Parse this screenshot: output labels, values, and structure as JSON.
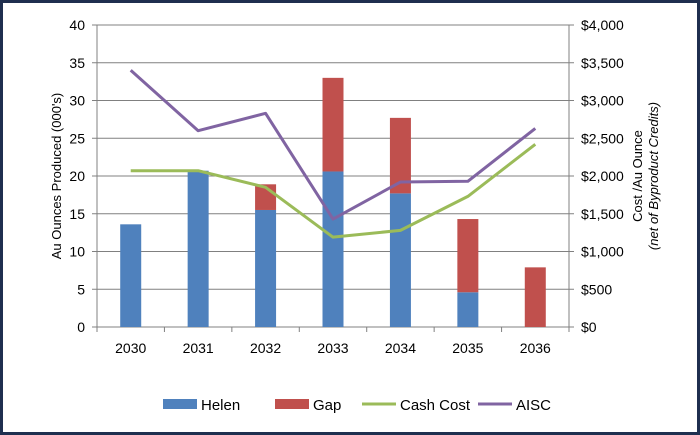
{
  "chart_data": {
    "type": "bar",
    "title": "",
    "categories": [
      "2030",
      "2031",
      "2032",
      "2033",
      "2034",
      "2035",
      "2036"
    ],
    "series": [
      {
        "name": "Helen",
        "kind": "stacked-bar",
        "axis": "left",
        "color": "#4f81bd",
        "values": [
          13.6,
          20.7,
          15.5,
          20.6,
          17.7,
          4.6,
          0
        ]
      },
      {
        "name": "Gap",
        "kind": "stacked-bar",
        "axis": "left",
        "color": "#c0504d",
        "values": [
          0,
          0,
          3.4,
          12.4,
          10.0,
          9.7,
          7.9
        ]
      },
      {
        "name": "Cash Cost",
        "kind": "line",
        "axis": "right",
        "color": "#9bbb59",
        "values": [
          2070,
          2070,
          1850,
          1190,
          1280,
          1730,
          2420
        ]
      },
      {
        "name": "AISC",
        "kind": "line",
        "axis": "right",
        "color": "#8064a2",
        "values": [
          3400,
          2600,
          2830,
          1430,
          1920,
          1930,
          2630
        ]
      }
    ],
    "ylabel": "Au Ounces Produced (000's)",
    "ylim": [
      0,
      40
    ],
    "yticks": [
      "0",
      "5",
      "10",
      "15",
      "20",
      "25",
      "30",
      "35",
      "40"
    ],
    "y2label_line1": "Cost /Au Ounce",
    "y2label_line2": "(net of Byproduct Credits)",
    "y2lim": [
      0,
      4000
    ],
    "y2ticks": [
      "$0",
      "$500",
      "$1,000",
      "$1,500",
      "$2,000",
      "$2,500",
      "$3,000",
      "$3,500",
      "$4,000"
    ],
    "xlabel": "",
    "legend_position": "bottom"
  }
}
